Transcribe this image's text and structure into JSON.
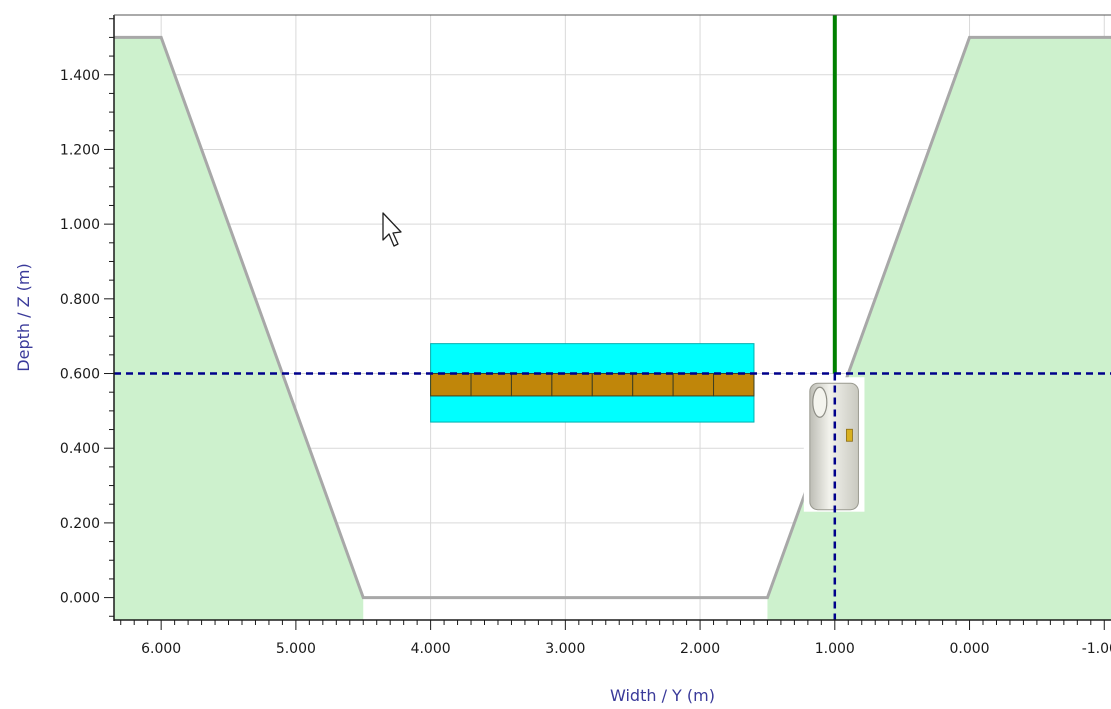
{
  "chart_data": {
    "type": "area",
    "xlabel": "Width / Y (m)",
    "ylabel": "Depth / Z (m)",
    "x_reversed": true,
    "xlim": [
      6.35,
      -1.05
    ],
    "ylim": [
      -0.06,
      1.56
    ],
    "grid": true,
    "x_ticks": [
      6,
      5,
      4,
      3,
      2,
      1,
      0,
      -1
    ],
    "x_tick_labels": [
      "6.000",
      "5.000",
      "4.000",
      "3.000",
      "2.000",
      "1.000",
      "0.000",
      "-1.000"
    ],
    "y_ticks": [
      0,
      0.2,
      0.4,
      0.6,
      0.8,
      1.0,
      1.2,
      1.4
    ],
    "y_tick_labels": [
      "0.000",
      "0.200",
      "0.400",
      "0.600",
      "0.800",
      "1.000",
      "1.200",
      "1.400"
    ],
    "trench_profile": {
      "y": [
        6.35,
        6.0,
        4.5,
        1.5,
        0.0,
        -1.05
      ],
      "z": [
        1.5,
        1.5,
        0.0,
        0.0,
        1.5,
        1.5
      ]
    },
    "pipe_bundle": {
      "y_min": 1.6,
      "y_max": 4.0,
      "outer_z_min": 0.47,
      "outer_z_max": 0.68,
      "inner_z_min": 0.54,
      "inner_z_max": 0.6,
      "segments": 8
    },
    "vertical_line": {
      "y": 1.0,
      "z_min": 0.6,
      "z_max": 1.56
    },
    "crosshair": {
      "y": 1.0,
      "z": 0.6
    },
    "tool_object": {
      "y_min": 0.78,
      "y_max": 1.23,
      "z_min": 0.23,
      "z_max": 0.59
    },
    "colors": {
      "soil_fill": "#cdf1cd",
      "profile_line": "#a8a8a8",
      "pipe_outer": "#00ffff",
      "pipe_inner": "#c0860a",
      "vertical_line": "#008000",
      "crosshair": "#00008b",
      "axis_title": "#3a3a9a"
    }
  }
}
